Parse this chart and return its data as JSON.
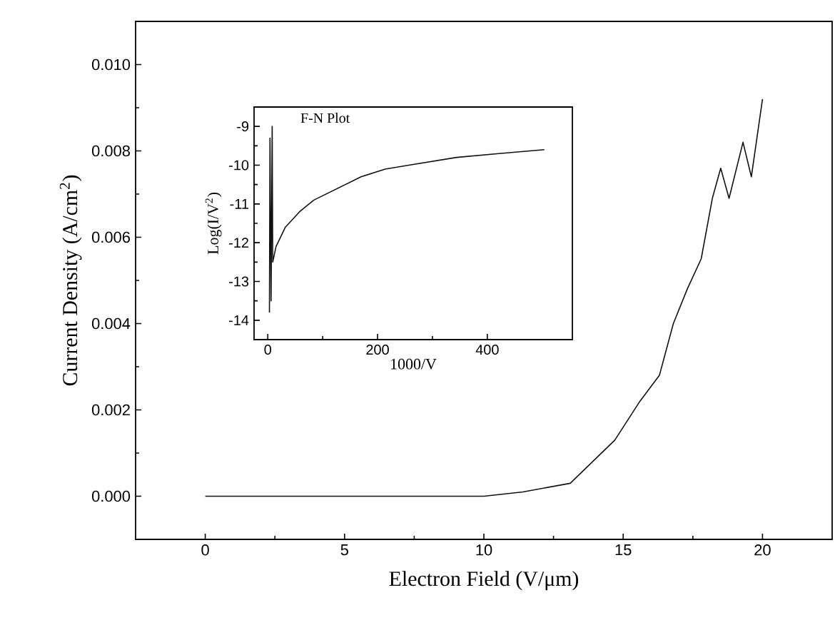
{
  "chart_data": [
    {
      "type": "line",
      "xlabel": "Electron Field (V/μm)",
      "ylabel": "Current Density (A/cm$^{2}$)",
      "color": "#111111",
      "x": [
        0,
        5,
        10,
        11.4,
        13.1,
        13.9,
        14.7,
        15.6,
        16.3,
        16.8,
        17.3,
        17.8,
        18.2,
        18.5,
        18.8,
        19.3,
        19.6,
        20.0
      ],
      "values": [
        0,
        0,
        0,
        0.0001,
        0.0003,
        0.0008,
        0.0013,
        0.0022,
        0.0028,
        0.004,
        0.0048,
        0.0055,
        0.0069,
        0.0076,
        0.0069,
        0.0082,
        0.0074,
        0.0092
      ],
      "xlim": [
        -2.5,
        22.5
      ],
      "ylim": [
        -0.001,
        0.011
      ],
      "xticks": [
        0,
        5,
        10,
        15,
        20
      ],
      "yticks": [
        {
          "value": 0,
          "label": "0.000"
        },
        0.002,
        0.004,
        0.006,
        0.008,
        {
          "value": 0.01,
          "label": "0.010"
        }
      ]
    },
    {
      "type": "line",
      "title": "F-N Plot",
      "xlabel": "1000/V",
      "ylabel": "Log(I/V$^{2}$)",
      "color": "#111111",
      "x": [
        3,
        4,
        6,
        8,
        9,
        15,
        32,
        58,
        84,
        127,
        170,
        214,
        257,
        344,
        421,
        504
      ],
      "values": [
        -13.8,
        -9.3,
        -13.5,
        -9.0,
        -12.5,
        -12.1,
        -11.6,
        -11.2,
        -10.9,
        -10.6,
        -10.3,
        -10.1,
        -10.0,
        -9.8,
        -9.7,
        -9.6
      ],
      "xlim": [
        -25,
        555
      ],
      "ylim": [
        -14.5,
        -8.5
      ],
      "xticks": [
        0,
        200,
        400
      ],
      "yticks": [
        -14,
        -13,
        -12,
        -11,
        -10,
        -9
      ]
    }
  ]
}
